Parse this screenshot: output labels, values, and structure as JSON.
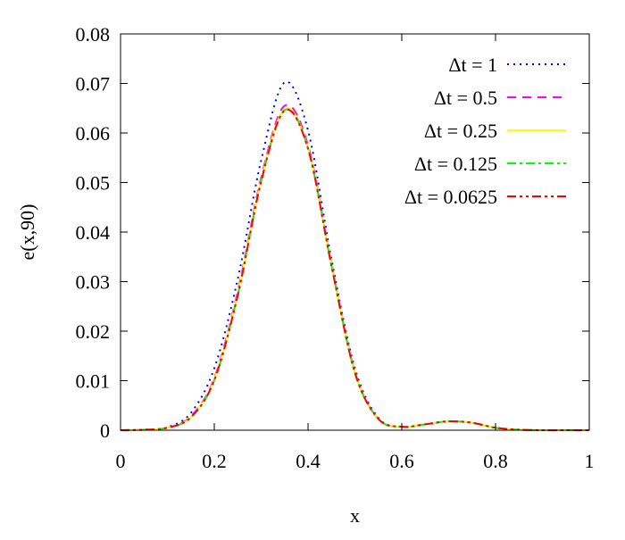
{
  "chart_data": {
    "type": "line",
    "title": "",
    "xlabel": "x",
    "ylabel": "e(x,90)",
    "xlim": [
      0,
      1
    ],
    "ylim": [
      0,
      0.08
    ],
    "xticks": [
      0,
      0.2,
      0.4,
      0.6,
      0.8,
      1
    ],
    "xtick_labels": [
      "0",
      "0.2",
      "0.4",
      "0.6",
      "0.8",
      "1"
    ],
    "yticks": [
      0,
      0.01,
      0.02,
      0.03,
      0.04,
      0.05,
      0.06,
      0.07,
      0.08
    ],
    "ytick_labels": [
      "0",
      "0.01",
      "0.02",
      "0.03",
      "0.04",
      "0.05",
      "0.06",
      "0.07",
      "0.08"
    ],
    "grid": false,
    "legend_position": "top-right",
    "series": [
      {
        "name": "Δt = 1",
        "color": "#0000ff",
        "dash": "dotted",
        "x": [
          0,
          0.05,
          0.1,
          0.15,
          0.2,
          0.25,
          0.3,
          0.35,
          0.4,
          0.45,
          0.5,
          0.55,
          0.6,
          0.65,
          0.7,
          0.75,
          0.8,
          0.85,
          0.9,
          0.95,
          1
        ],
        "y": [
          0,
          0.0001,
          0.0006,
          0.0035,
          0.0125,
          0.0305,
          0.0545,
          0.0702,
          0.0605,
          0.0345,
          0.0125,
          0.0025,
          0.0007,
          0.0012,
          0.0018,
          0.0015,
          0.0005,
          0.0001,
          0,
          0,
          0
        ]
      },
      {
        "name": "Δt = 0.5",
        "color": "#ff00ff",
        "dash": "dashed",
        "x": [
          0,
          0.05,
          0.1,
          0.15,
          0.2,
          0.25,
          0.3,
          0.35,
          0.4,
          0.45,
          0.5,
          0.55,
          0.6,
          0.65,
          0.7,
          0.75,
          0.8,
          0.85,
          0.9,
          0.95,
          1
        ],
        "y": [
          0,
          0.0001,
          0.0005,
          0.0028,
          0.0105,
          0.028,
          0.051,
          0.0655,
          0.0575,
          0.0335,
          0.0118,
          0.0023,
          0.0007,
          0.0012,
          0.0018,
          0.0015,
          0.0005,
          0.0001,
          0,
          0,
          0
        ]
      },
      {
        "name": "Δt = 0.25",
        "color": "#ffff00",
        "dash": "solid",
        "x": [
          0,
          0.05,
          0.1,
          0.15,
          0.2,
          0.25,
          0.3,
          0.35,
          0.4,
          0.45,
          0.5,
          0.55,
          0.6,
          0.65,
          0.7,
          0.75,
          0.8,
          0.85,
          0.9,
          0.95,
          1
        ],
        "y": [
          0,
          0.0001,
          0.0005,
          0.0026,
          0.0102,
          0.0275,
          0.0505,
          0.0648,
          0.057,
          0.0333,
          0.0117,
          0.0023,
          0.0007,
          0.0012,
          0.0018,
          0.0015,
          0.0005,
          0.0001,
          0,
          0,
          0
        ]
      },
      {
        "name": "Δt = 0.125",
        "color": "#00ff00",
        "dash": "dashdot",
        "x": [
          0,
          0.05,
          0.1,
          0.15,
          0.2,
          0.25,
          0.3,
          0.35,
          0.4,
          0.45,
          0.5,
          0.55,
          0.6,
          0.65,
          0.7,
          0.75,
          0.8,
          0.85,
          0.9,
          0.95,
          1
        ],
        "y": [
          0,
          0.0001,
          0.0005,
          0.0026,
          0.0101,
          0.0273,
          0.0503,
          0.0646,
          0.0569,
          0.0332,
          0.0116,
          0.0023,
          0.0007,
          0.0012,
          0.0018,
          0.0015,
          0.0005,
          0.0001,
          0,
          0,
          0
        ]
      },
      {
        "name": "Δt = 0.0625",
        "color": "#ff0000",
        "dash": "dashdotdot",
        "x": [
          0,
          0.05,
          0.1,
          0.15,
          0.2,
          0.25,
          0.3,
          0.35,
          0.4,
          0.45,
          0.5,
          0.55,
          0.6,
          0.65,
          0.7,
          0.75,
          0.8,
          0.85,
          0.9,
          0.95,
          1
        ],
        "y": [
          0,
          0.0001,
          0.0005,
          0.0026,
          0.0101,
          0.0272,
          0.0502,
          0.0645,
          0.0568,
          0.0332,
          0.0116,
          0.0023,
          0.0007,
          0.0012,
          0.0018,
          0.0015,
          0.0005,
          0.0001,
          0,
          0,
          0
        ]
      }
    ]
  }
}
